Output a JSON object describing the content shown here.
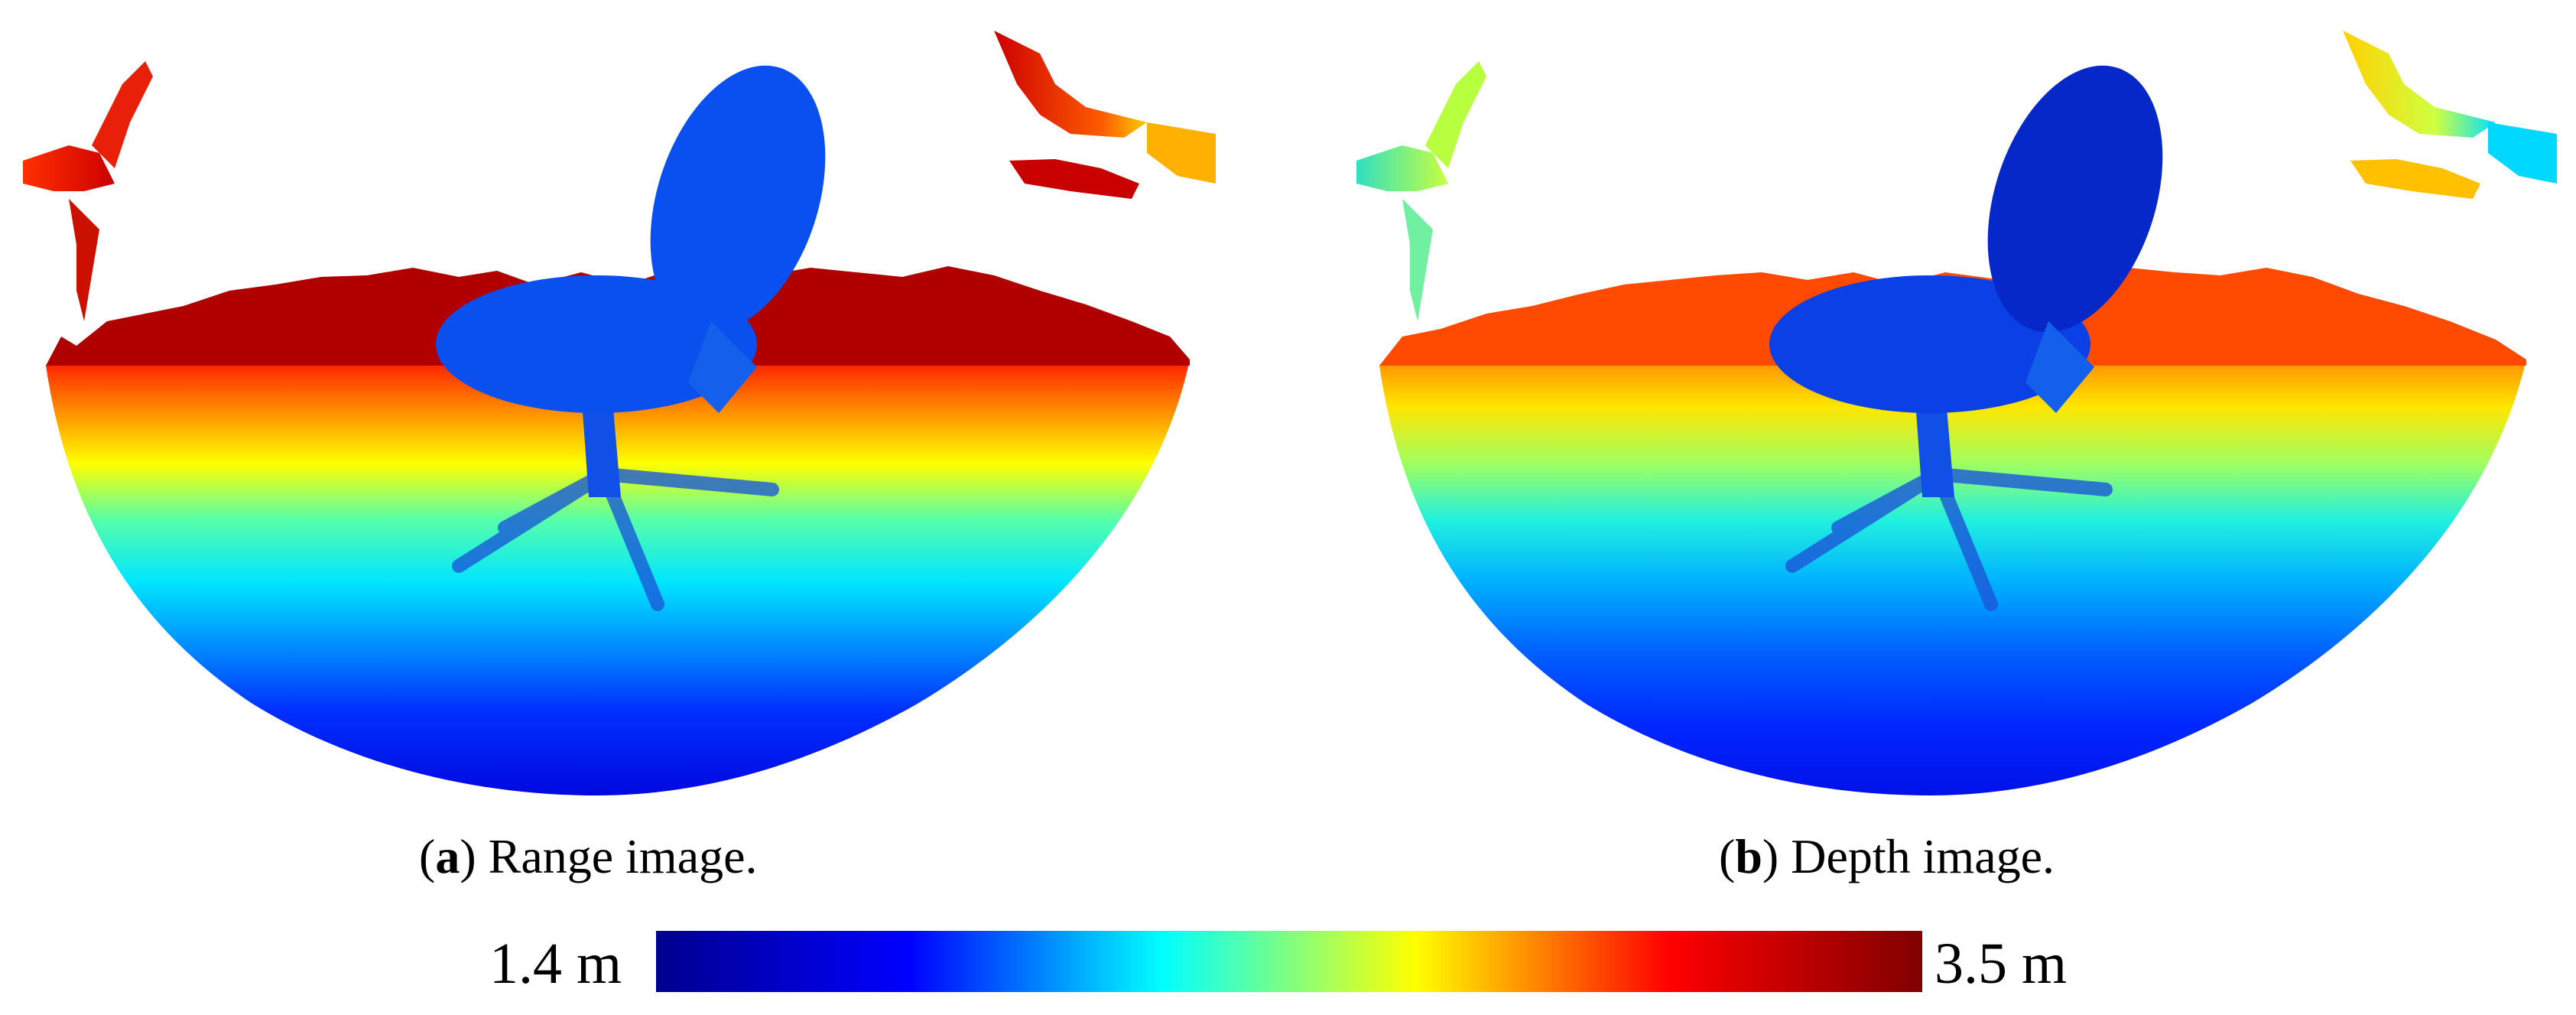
{
  "figure": {
    "panels": [
      {
        "letter": "a",
        "caption_text": "Range image.",
        "image_kind": "range"
      },
      {
        "letter": "b",
        "caption_text": "Depth image.",
        "image_kind": "depth"
      }
    ],
    "colorbar": {
      "min_label": "1.4 m",
      "max_label": "3.5 m",
      "colormap": "jet",
      "stops": [
        "#00008f",
        "#0000ff",
        "#00ffff",
        "#ffff00",
        "#ff0000",
        "#800000"
      ]
    }
  }
}
